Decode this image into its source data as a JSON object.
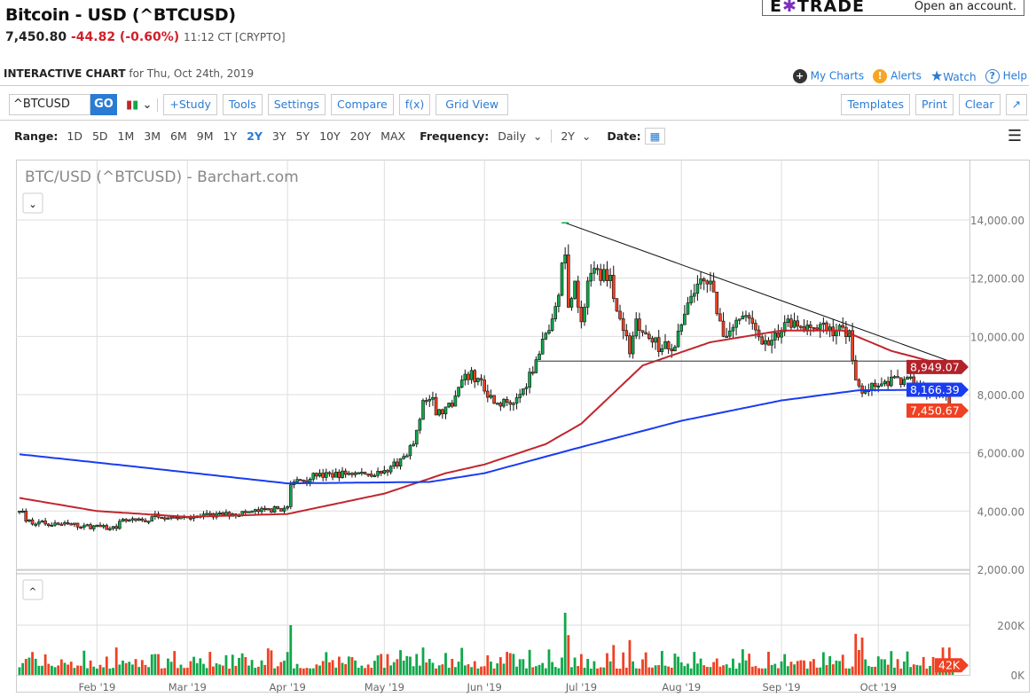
{
  "header": {
    "title": "Bitcoin - USD (^BTCUSD)",
    "price": "7,450.80",
    "change": "-44.82 (-0.60%)",
    "time": "11:12 CT [CRYPTO]"
  },
  "ad": {
    "logo_prefix": "E",
    "logo_star": "✱",
    "logo_suffix": "TRADE",
    "cta": "Open an account."
  },
  "subheader": {
    "label": "INTERACTIVE CHART",
    "date": "for Thu, Oct 24th, 2019"
  },
  "links": [
    {
      "label": "My Charts",
      "icon": "plus-circle",
      "color": "#333333"
    },
    {
      "label": "Alerts",
      "icon": "exclamation",
      "color": "#f5a623"
    },
    {
      "label": "Watch",
      "icon": "star",
      "color": "#2a7bd3"
    },
    {
      "label": "Help",
      "icon": "question",
      "color": "#2a7bd3"
    }
  ],
  "toolbar": {
    "symbol": "^BTCUSD",
    "go": "GO",
    "buttons": [
      "+Study",
      "Tools",
      "Settings",
      "Compare",
      "f(x)",
      "Grid View"
    ],
    "right_buttons": [
      "Templates",
      "Print",
      "Clear",
      "↗"
    ]
  },
  "range": {
    "label": "Range:",
    "options": [
      "1D",
      "5D",
      "1M",
      "3M",
      "6M",
      "9M",
      "1Y",
      "2Y",
      "3Y",
      "5Y",
      "10Y",
      "20Y",
      "MAX"
    ],
    "selected": "2Y",
    "frequency_label": "Frequency:",
    "frequency": "Daily",
    "period": "2Y",
    "date_label": "Date:"
  },
  "chart_data": {
    "type": "candlestick",
    "title": "BTC/USD (^BTCUSD) - Barchart.com",
    "ylim": [
      2000,
      14000
    ],
    "y_ticks": [
      "14,000.00",
      "12,000.00",
      "10,000.00",
      "8,000.00",
      "6,000.00",
      "4,000.00",
      "2,000.00"
    ],
    "x_ticks": [
      [
        "2019-02-01",
        "Feb '19"
      ],
      [
        "2019-03-01",
        "Mar '19"
      ],
      [
        "2019-04-01",
        "Apr '19"
      ],
      [
        "2019-05-01",
        "May '19"
      ],
      [
        "2019-06-01",
        "Jun '19"
      ],
      [
        "2019-07-01",
        "Jul '19"
      ],
      [
        "2019-08-01",
        "Aug '19"
      ],
      [
        "2019-09-01",
        "Sep '19"
      ],
      [
        "2019-10-01",
        "Oct '19"
      ]
    ],
    "date_range": [
      "2019-01-08",
      "2019-10-24"
    ],
    "close_keyframes": [
      [
        "2019-01-08",
        4000
      ],
      [
        "2019-01-09",
        4000
      ],
      [
        "2019-01-10",
        3650
      ],
      [
        "2019-01-20",
        3550
      ],
      [
        "2019-01-28",
        3500
      ],
      [
        "2019-02-05",
        3400
      ],
      [
        "2019-02-07",
        3400
      ],
      [
        "2019-02-08",
        3650
      ],
      [
        "2019-02-17",
        3650
      ],
      [
        "2019-02-19",
        3900
      ],
      [
        "2019-02-24",
        3800
      ],
      [
        "2019-03-03",
        3800
      ],
      [
        "2019-03-15",
        3900
      ],
      [
        "2019-03-31",
        4100
      ],
      [
        "2019-04-01",
        4150
      ],
      [
        "2019-04-02",
        4900
      ],
      [
        "2019-04-03",
        5000
      ],
      [
        "2019-04-10",
        5200
      ],
      [
        "2019-04-20",
        5300
      ],
      [
        "2019-04-30",
        5300
      ],
      [
        "2019-05-08",
        5900
      ],
      [
        "2019-05-10",
        6300
      ],
      [
        "2019-05-13",
        7800
      ],
      [
        "2019-05-16",
        7900
      ],
      [
        "2019-05-17",
        7300
      ],
      [
        "2019-05-22",
        7600
      ],
      [
        "2019-05-26",
        8700
      ],
      [
        "2019-05-31",
        8500
      ],
      [
        "2019-06-04",
        7700
      ],
      [
        "2019-06-10",
        7700
      ],
      [
        "2019-06-13",
        8200
      ],
      [
        "2019-06-17",
        9200
      ],
      [
        "2019-06-22",
        10600
      ],
      [
        "2019-06-26",
        12800
      ],
      [
        "2019-06-27",
        11000
      ],
      [
        "2019-06-29",
        11900
      ],
      [
        "2019-07-01",
        10500
      ],
      [
        "2019-07-03",
        11900
      ],
      [
        "2019-07-08",
        12300
      ],
      [
        "2019-07-10",
        12100
      ],
      [
        "2019-07-11",
        11300
      ],
      [
        "2019-07-14",
        10200
      ],
      [
        "2019-07-16",
        9400
      ],
      [
        "2019-07-18",
        10600
      ],
      [
        "2019-07-23",
        9800
      ],
      [
        "2019-07-29",
        9500
      ],
      [
        "2019-08-01",
        10400
      ],
      [
        "2019-08-06",
        11800
      ],
      [
        "2019-08-10",
        11900
      ],
      [
        "2019-08-14",
        10000
      ],
      [
        "2019-08-20",
        10700
      ],
      [
        "2019-08-28",
        9700
      ],
      [
        "2019-09-03",
        10600
      ],
      [
        "2019-09-10",
        10300
      ],
      [
        "2019-09-22",
        10200
      ],
      [
        "2019-09-24",
        8500
      ],
      [
        "2019-09-26",
        8050
      ],
      [
        "2019-10-01",
        8300
      ],
      [
        "2019-10-10",
        8600
      ],
      [
        "2019-10-15",
        8200
      ],
      [
        "2019-10-22",
        8050
      ],
      [
        "2019-10-23",
        7450
      ],
      [
        "2019-10-24",
        7450
      ]
    ],
    "ma_fast": {
      "color": "#c0262d",
      "last": "8,949.07",
      "points": [
        [
          "2019-01-08",
          4450
        ],
        [
          "2019-02-01",
          4000
        ],
        [
          "2019-03-01",
          3800
        ],
        [
          "2019-04-01",
          3900
        ],
        [
          "2019-05-01",
          4600
        ],
        [
          "2019-05-20",
          5300
        ],
        [
          "2019-06-01",
          5600
        ],
        [
          "2019-06-20",
          6300
        ],
        [
          "2019-07-01",
          7000
        ],
        [
          "2019-07-20",
          9000
        ],
        [
          "2019-08-10",
          9800
        ],
        [
          "2019-09-01",
          10200
        ],
        [
          "2019-09-20",
          10200
        ],
        [
          "2019-10-05",
          9500
        ],
        [
          "2019-10-24",
          8949
        ]
      ]
    },
    "ma_slow": {
      "color": "#1a3cf0",
      "last": "8,166.39",
      "points": [
        [
          "2019-01-08",
          5950
        ],
        [
          "2019-02-15",
          5500
        ],
        [
          "2019-04-01",
          4950
        ],
        [
          "2019-05-15",
          5000
        ],
        [
          "2019-06-01",
          5300
        ],
        [
          "2019-07-01",
          6200
        ],
        [
          "2019-08-01",
          7100
        ],
        [
          "2019-09-01",
          7800
        ],
        [
          "2019-09-25",
          8150
        ],
        [
          "2019-10-24",
          8166
        ]
      ]
    },
    "trendline": [
      [
        "2019-06-26",
        13900
      ],
      [
        "2019-10-23",
        9150
      ]
    ],
    "support": {
      "value": 9150,
      "from": "2019-06-17",
      "to": "2019-10-24"
    },
    "last_price": "7,450.67",
    "volume": {
      "y_ticks": [
        "200K",
        "0K"
      ],
      "last": "42K",
      "ymax": 200000,
      "spikes": [
        [
          "2019-04-02",
          200000
        ],
        [
          "2019-05-13",
          110000
        ],
        [
          "2019-06-26",
          250000
        ],
        [
          "2019-06-27",
          160000
        ],
        [
          "2019-07-11",
          120000
        ],
        [
          "2019-07-16",
          140000
        ],
        [
          "2019-09-24",
          165000
        ],
        [
          "2019-09-25",
          100000
        ],
        [
          "2019-09-26",
          150000
        ],
        [
          "2019-10-23",
          110000
        ]
      ]
    },
    "up_color": "#0fa84a",
    "down_color": "#ef4123"
  }
}
